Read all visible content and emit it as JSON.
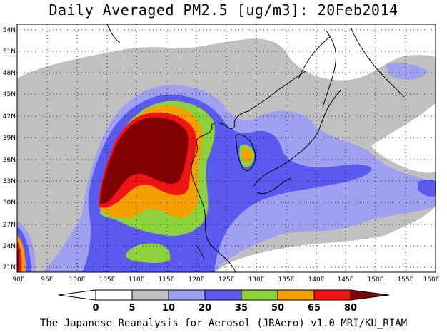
{
  "title": "Daily Averaged PM2.5 [ug/m3]: 20Feb2014",
  "footer": "The Japanese Reanalysis for Aerosol (JRAero) v1.0 MRI/KU_RIAM",
  "map": {
    "lat_labels": [
      "54N",
      "51N",
      "48N",
      "45N",
      "42N",
      "39N",
      "36N",
      "33N",
      "30N",
      "27N",
      "24N",
      "21N"
    ],
    "lon_labels": [
      "90E",
      "95E",
      "100E",
      "105E",
      "110E",
      "115E",
      "120E",
      "125E",
      "130E",
      "135E",
      "140E",
      "145E",
      "150E",
      "155E",
      "160E"
    ],
    "gridlines": "dotted"
  },
  "colorbar": {
    "tick_labels": [
      "0",
      "5",
      "10",
      "20",
      "35",
      "50",
      "65",
      "80"
    ],
    "colors": [
      "#ffffff",
      "#c0c0c0",
      "#a0a0f0",
      "#5a5af0",
      "#8cd23c",
      "#f5a000",
      "#f01414",
      "#820000"
    ]
  }
}
